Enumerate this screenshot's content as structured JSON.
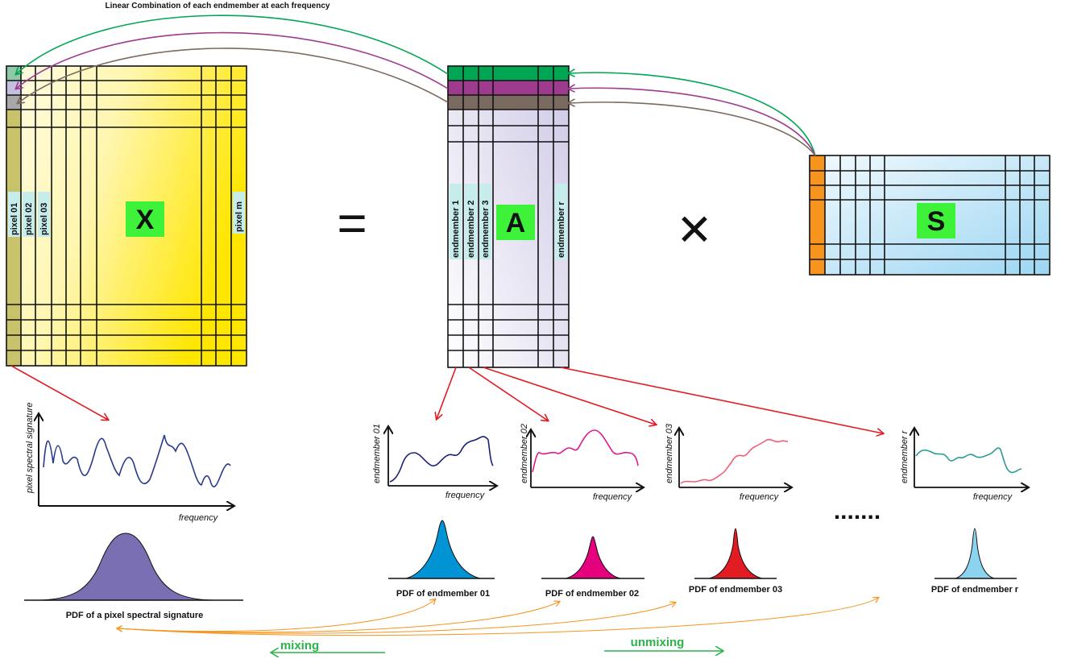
{
  "title": "Linear Combination of each endmember at each frequency",
  "equation": {
    "x_label": "X",
    "a_label": "A",
    "s_label": "S",
    "equals_symbol": "=",
    "times_symbol": "✕"
  },
  "x_matrix": {
    "column_labels": [
      "pixel 01",
      "pixel 02",
      "pixel 03",
      "pixel m"
    ]
  },
  "a_matrix": {
    "column_labels": [
      "endmember 1",
      "endmember 2",
      "endmember 3",
      "endmember r"
    ]
  },
  "pixel_plot": {
    "ylabel": "pixel spectral signature",
    "xlabel": "frequency",
    "pdf_caption": "PDF of a pixel spectral signature"
  },
  "endmember_plots": [
    {
      "ylabel": "endmember 01",
      "xlabel": "frequency",
      "pdf_caption": "PDF of  endmember 01",
      "color": "#1b1f7a",
      "pdf_color": "#0094d4"
    },
    {
      "ylabel": "endmember 02",
      "xlabel": "frequency",
      "pdf_caption": "PDF of  endmember 02",
      "color": "#e0188a",
      "pdf_color": "#e5007e"
    },
    {
      "ylabel": "endmember 03",
      "xlabel": "frequency",
      "pdf_caption": "PDF of  endmember 03",
      "color": "#f0607a",
      "pdf_color": "#e31c23"
    },
    {
      "ylabel": "endmember r",
      "xlabel": "frequency",
      "pdf_caption": "PDF of  endmember r",
      "color": "#2a9d95",
      "pdf_color": "#8cd3f0"
    }
  ],
  "ellipsis": ".......",
  "mixing_label": "mixing",
  "unmixing_label": "unmixing",
  "colors": {
    "x_fill_light": "#fffce0",
    "x_fill_dark": "#ffe600",
    "x_first_col": "#c8c36a",
    "a_fill": "#d9d6ea",
    "s_fill": "#bfe4f7",
    "s_first_col": "#f7941d",
    "row_green": "#00a651",
    "row_purple": "#9e3b8f",
    "row_brown": "#7b6a60",
    "label_box_green": "#3ef23a",
    "label_box_cyan": "#c6ecec",
    "red_arrow": "#e31c23",
    "orange_arrow": "#f7941d",
    "green_text": "#2bb34a",
    "pixel_curve": "#283a8c",
    "pixel_pdf": "#7a6fb3"
  }
}
